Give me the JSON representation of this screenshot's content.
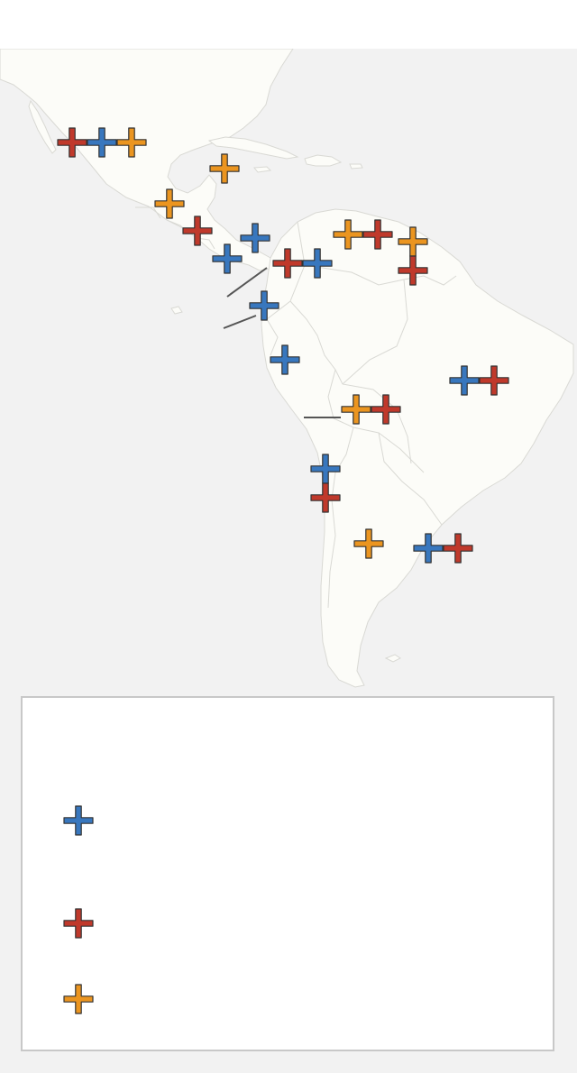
{
  "map": {
    "background_color": "#f2f2f2",
    "land_color": "#fcfcf8",
    "border_color": "#d9d9d4",
    "leader_color": "#555555"
  },
  "legend": {
    "entries": [
      {
        "category": "blue",
        "color": "#3877be",
        "label": ""
      },
      {
        "category": "red",
        "color": "#c0392b",
        "label": ""
      },
      {
        "category": "orange",
        "color": "#eb9520",
        "label": ""
      }
    ]
  },
  "markers": [
    {
      "name": "mexico",
      "colors": [
        "red",
        "blue",
        "orange"
      ]
    },
    {
      "name": "cuba",
      "colors": [
        "orange"
      ]
    },
    {
      "name": "guatemala",
      "colors": [
        "orange"
      ]
    },
    {
      "name": "honduras-nicaragua",
      "colors": [
        "red"
      ]
    },
    {
      "name": "nicaragua-costa-rica",
      "colors": [
        "blue"
      ]
    },
    {
      "name": "panama",
      "colors": [
        "blue"
      ]
    },
    {
      "name": "colombia",
      "colors": [
        "red",
        "blue"
      ]
    },
    {
      "name": "venezuela",
      "colors": [
        "orange",
        "red"
      ]
    },
    {
      "name": "trinidad-guyana",
      "colors": [
        "orange"
      ]
    },
    {
      "name": "guyana",
      "colors": [
        "red"
      ]
    },
    {
      "name": "ecuador",
      "colors": [
        "blue"
      ]
    },
    {
      "name": "peru",
      "colors": [
        "blue"
      ]
    },
    {
      "name": "brazil",
      "colors": [
        "blue",
        "red"
      ]
    },
    {
      "name": "bolivia",
      "colors": [
        "orange",
        "red"
      ]
    },
    {
      "name": "chile-north",
      "colors": [
        "blue"
      ]
    },
    {
      "name": "chile-central",
      "colors": [
        "red"
      ]
    },
    {
      "name": "argentina",
      "colors": [
        "orange"
      ]
    },
    {
      "name": "uruguay",
      "colors": [
        "blue",
        "red"
      ]
    }
  ]
}
